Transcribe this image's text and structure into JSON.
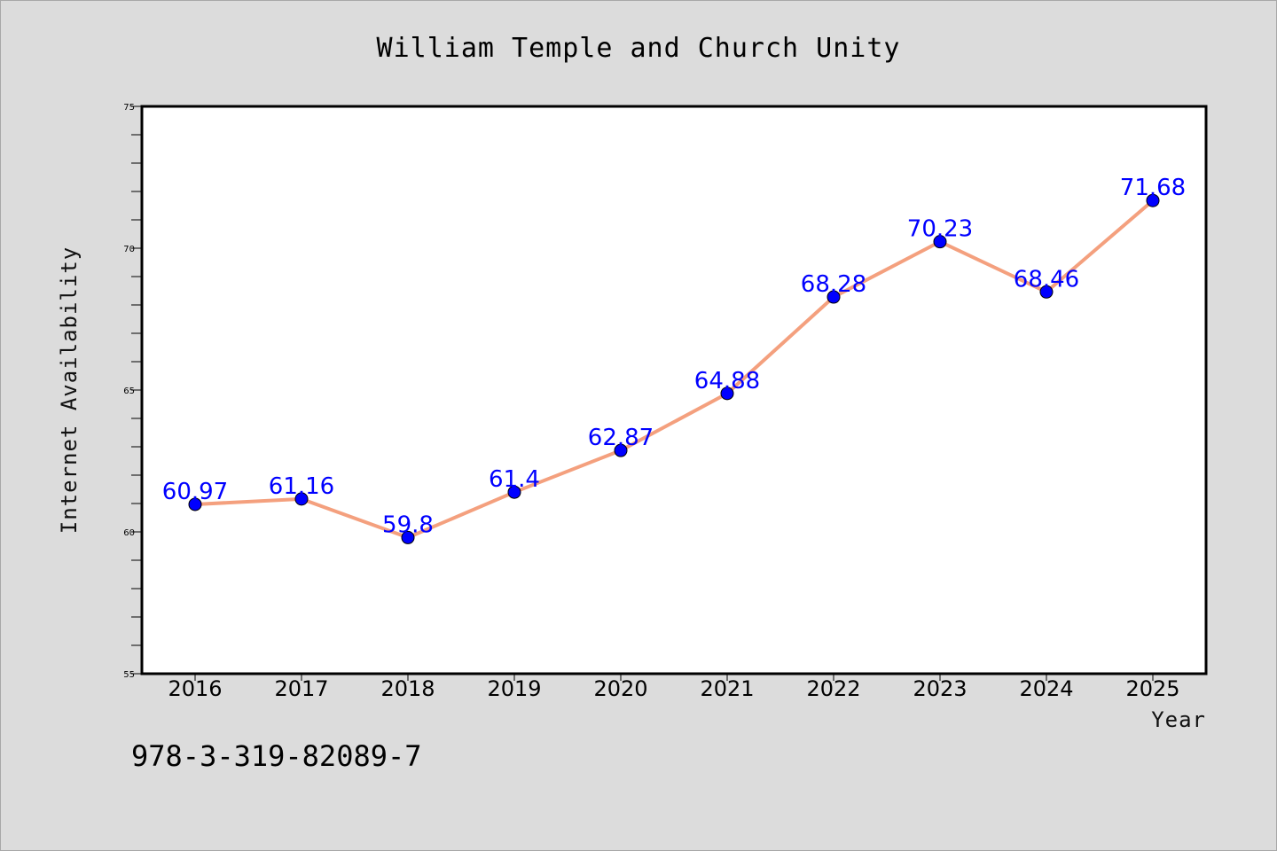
{
  "chart_data": {
    "type": "line",
    "title": "William Temple and Church Unity",
    "xlabel": "Year",
    "ylabel": "Internet Availability",
    "x": [
      "2016",
      "2017",
      "2018",
      "2019",
      "2020",
      "2021",
      "2022",
      "2023",
      "2024",
      "2025"
    ],
    "series": [
      {
        "values": [
          60.97,
          61.16,
          59.8,
          61.4,
          62.87,
          64.88,
          68.28,
          70.23,
          68.46,
          71.68
        ]
      }
    ],
    "data_labels": [
      "60.97",
      "61.16",
      "59.8",
      "61.4",
      "62.87",
      "64.88",
      "68.28",
      "70.23",
      "68.46",
      "71.68"
    ],
    "ylim": [
      55,
      75
    ],
    "yticks": [
      55,
      60,
      65,
      70,
      75
    ],
    "ytick_labels": [
      "55",
      "60",
      "65",
      "70",
      "75"
    ],
    "grid": false,
    "colors": {
      "line": "#f4a07e",
      "marker": "#0000ff",
      "label": "#0000ff",
      "plot_bg": "#ffffff",
      "page_bg": "#dcdcdc"
    }
  },
  "footer": {
    "text": "978-3-319-82089-7"
  }
}
